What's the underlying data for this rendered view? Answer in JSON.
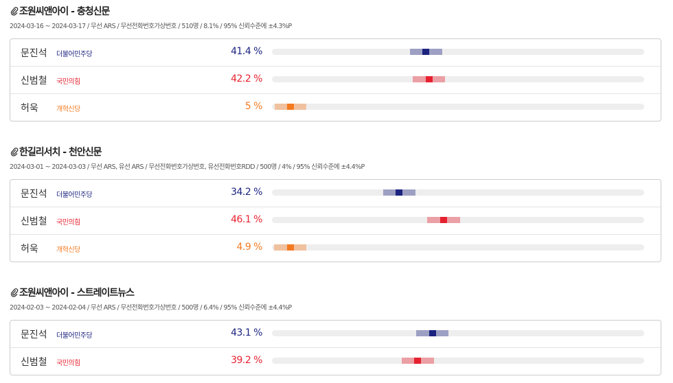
{
  "xlim": [
    0,
    100
  ],
  "polls": [
    {
      "title": "조원씨앤아이 - 충청신문",
      "meta": "2024-03-16 ~ 2024-03-17 / 무선 ARS / 무선전화번호가상번호 / 510명 / 8.1% / 95% 신뢰수준에 ±4.3%P",
      "margin": 4.3,
      "rows": [
        {
          "name": "문진석",
          "party": "더불어민주당",
          "color": "#1b237f",
          "value": 41.4,
          "value_label": "41.4 %"
        },
        {
          "name": "신범철",
          "party": "국민의힘",
          "color": "#e6212f",
          "value": 42.2,
          "value_label": "42.2 %"
        },
        {
          "name": "허욱",
          "party": "개혁신당",
          "color": "#f47a20",
          "value": 5,
          "value_label": "5 %"
        }
      ]
    },
    {
      "title": "한길리서치 - 천안신문",
      "meta": "2024-03-01 ~ 2024-03-03 / 무선 ARS, 유선 ARS / 무선전화번호가상번호, 유선전화번호RDD / 500명 / 4% / 95% 신뢰수준에 ±4.4%P",
      "margin": 4.4,
      "rows": [
        {
          "name": "문진석",
          "party": "더불어민주당",
          "color": "#1b237f",
          "value": 34.2,
          "value_label": "34.2 %"
        },
        {
          "name": "신범철",
          "party": "국민의힘",
          "color": "#e6212f",
          "value": 46.1,
          "value_label": "46.1 %"
        },
        {
          "name": "허욱",
          "party": "개혁신당",
          "color": "#f47a20",
          "value": 4.9,
          "value_label": "4.9 %"
        }
      ]
    },
    {
      "title": "조원씨앤아이 - 스트레이트뉴스",
      "meta": "2024-02-03 ~ 2024-02-04 / 무선 ARS / 무선전화번호가상번호 / 500명 / 6.4% / 95% 신뢰수준에 ±4.4%P",
      "margin": 4.4,
      "rows": [
        {
          "name": "문진석",
          "party": "더불어민주당",
          "color": "#1b237f",
          "value": 43.1,
          "value_label": "43.1 %"
        },
        {
          "name": "신범철",
          "party": "국민의힘",
          "color": "#e6212f",
          "value": 39.2,
          "value_label": "39.2 %"
        }
      ]
    }
  ]
}
